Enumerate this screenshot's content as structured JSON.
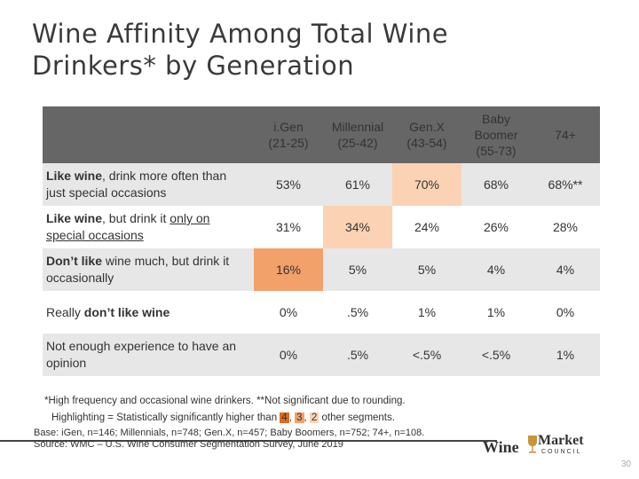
{
  "title": "Wine Affinity Among Total Wine Drinkers* by Generation",
  "header": {
    "columns": [
      {
        "name": "i.Gen",
        "range": "(21-25)"
      },
      {
        "name": "Millennial",
        "range": "(25-42)"
      },
      {
        "name": "Gen.X",
        "range": "(43-54)"
      },
      {
        "name": "Baby Boomer",
        "range": "(55-73)"
      },
      {
        "name": "74+",
        "range": ""
      }
    ]
  },
  "rows": [
    {
      "label_bold": "Like wine",
      "label_rest": ", drink more often than just special occasions",
      "values": [
        "53%",
        "61%",
        "70%",
        "68%",
        "68%**"
      ]
    },
    {
      "label_bold": "Like wine",
      "label_mid": ", but drink it ",
      "label_under": "only on special occasions",
      "values": [
        "31%",
        "34%",
        "24%",
        "26%",
        "28%"
      ]
    },
    {
      "label_bold": "Don’t like",
      "label_rest": " wine much, but drink it occasionally",
      "values": [
        "16%",
        "5%",
        "5%",
        "4%",
        "4%"
      ]
    },
    {
      "label_pre": "Really ",
      "label_bold": "don’t like wine",
      "values": [
        "0%",
        ".5%",
        "1%",
        "1%",
        "0%"
      ]
    },
    {
      "label_rest": "Not enough experience to have an opinion",
      "values": [
        "0%",
        ".5%",
        "<.5%",
        "<.5%",
        "1%"
      ]
    }
  ],
  "footnote": "*High frequency and occasional wine drinkers. **Not significant due to rounding.",
  "highlight_note": {
    "prefix": "Highlighting = Statistically significantly higher than ",
    "n4": "4",
    "n3": "3",
    "n2": "2",
    "suffix": " other segments."
  },
  "base": "Base: iGen, n=146; Millennials, n=748; Gen.X, n=457; Baby Boomers, n=752; 74+, n=108.",
  "source": "Source: WMC – U.S. Wine Consumer Segmentation Survey, June 2019",
  "logo": {
    "wine": "Wine",
    "market": "Market",
    "council": "COUNCIL"
  },
  "page_number": "30",
  "colors": {
    "highlight_4": "#e06a1e",
    "highlight_3": "#f2a16a",
    "highlight_2": "#fbd2b4",
    "header_bg": "#666666"
  }
}
